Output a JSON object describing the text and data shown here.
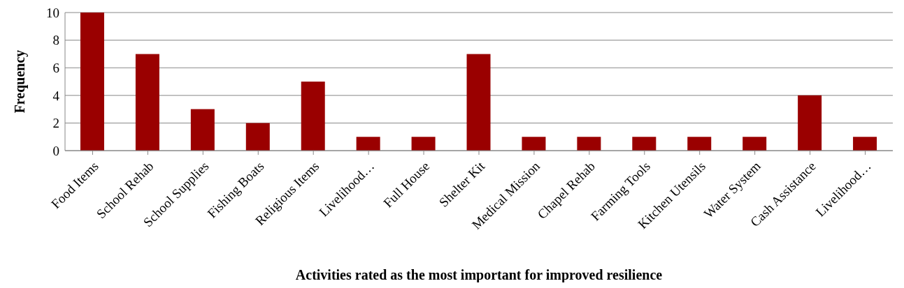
{
  "chart_data": {
    "type": "bar",
    "xlabel": "Activities rated  as the most important for improved resilience",
    "ylabel": "Frequency",
    "categories": [
      "Food Items",
      "School Rehab",
      "School Supplies",
      "Fishing Boats",
      "Religious Items",
      "Livelihood…",
      "Full House",
      "Shelter Kit",
      "Medical Mission",
      "Chapel Rehab",
      "Farming Tools",
      "Kitchen Utensils",
      "Water System",
      "Cash Assistance",
      "Livelihood…"
    ],
    "values": [
      10,
      7,
      3,
      2,
      5,
      1,
      1,
      7,
      1,
      1,
      1,
      1,
      1,
      4,
      1
    ],
    "color": "#9a0000",
    "ylim": [
      0,
      10
    ],
    "yticks": [
      0,
      2,
      4,
      6,
      8,
      10
    ],
    "grid": "y",
    "legend": false
  }
}
